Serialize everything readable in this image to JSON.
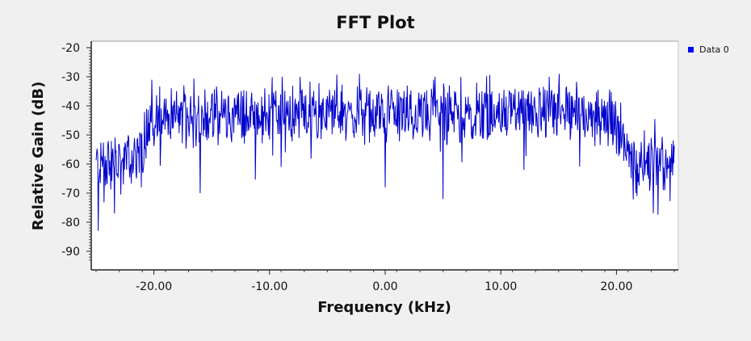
{
  "window": {
    "title": "FFT Plot"
  },
  "legend": {
    "entry": "Data 0",
    "color": "#0000ff"
  },
  "colors": {
    "background": "#f0f0f0",
    "plot_area": "#ffffff",
    "trace": "#0000cc"
  },
  "chart_data": {
    "type": "line",
    "title": "FFT Plot",
    "xlabel": "Frequency (kHz)",
    "ylabel": "Relative Gain (dB)",
    "xlim": [
      -25,
      25
    ],
    "ylim": [
      -93,
      -17
    ],
    "x_ticks": [
      -20,
      -10,
      0,
      10,
      20
    ],
    "x_tick_labels": [
      "-20.00",
      "-10.00",
      "0.00",
      "10.00",
      "20.00"
    ],
    "y_ticks": [
      -20,
      -30,
      -40,
      -50,
      -60,
      -70,
      -80,
      -90
    ],
    "y_tick_labels": [
      "-20",
      "-30",
      "-40",
      "-50",
      "-60",
      "-70",
      "-80",
      "-90"
    ],
    "grid": false,
    "legend_position": "top-right, outside plot",
    "series": [
      {
        "name": "Data 0",
        "color": "#0000cc",
        "envelope_x": [
          -25,
          -24,
          -22.5,
          -21,
          -20.5,
          -18,
          -10,
          -5,
          0,
          5,
          10,
          17,
          19.5,
          20.5,
          21,
          22,
          23.5,
          25
        ],
        "envelope_y": [
          -60,
          -60,
          -59,
          -56,
          -45,
          -44,
          -43,
          -43,
          -43,
          -43,
          -42,
          -42,
          -44,
          -50,
          -58,
          -59,
          -60,
          -60
        ],
        "x": [
          -25,
          -24.8,
          -24,
          -23,
          -22,
          -21,
          -20,
          -19,
          -18,
          -17,
          -16,
          -15,
          -14,
          -13,
          -12,
          -11,
          -10,
          -9,
          -8,
          -7,
          -6,
          -5,
          -4,
          -3,
          -2,
          -1,
          0,
          1,
          2,
          3,
          4,
          5,
          6,
          7,
          8,
          9,
          10,
          11,
          12,
          13,
          14,
          15,
          16,
          17,
          18,
          19,
          20,
          21,
          22,
          23,
          24,
          25
        ],
        "y": [
          -53,
          -83,
          -60,
          -62,
          -58,
          -55,
          -38,
          -40,
          -42,
          -44,
          -41,
          -45,
          -43,
          -44,
          -42,
          -41,
          -42,
          -45,
          -41,
          -43,
          -44,
          -45,
          -42,
          -45,
          -42,
          -44,
          -50,
          -42,
          -44,
          -43,
          -41,
          -43,
          -41,
          -42,
          -44,
          -42,
          -43,
          -40,
          -43,
          -42,
          -41,
          -43,
          -40,
          -42,
          -41,
          -42,
          -45,
          -58,
          -59,
          -60,
          -61,
          -61
        ],
        "peaks": [
          [
            -20.2,
            -31
          ],
          [
            -8.9,
            -30
          ],
          [
            4.3,
            -30
          ],
          [
            14.2,
            -30
          ]
        ],
        "dips": [
          [
            -24.8,
            -83
          ],
          [
            -23.4,
            -77
          ],
          [
            -16,
            -70
          ],
          [
            -9,
            -61
          ],
          [
            0,
            -68
          ],
          [
            5,
            -72
          ],
          [
            12,
            -62
          ],
          [
            21.7,
            -70
          ],
          [
            24.2,
            -69
          ]
        ]
      }
    ]
  }
}
